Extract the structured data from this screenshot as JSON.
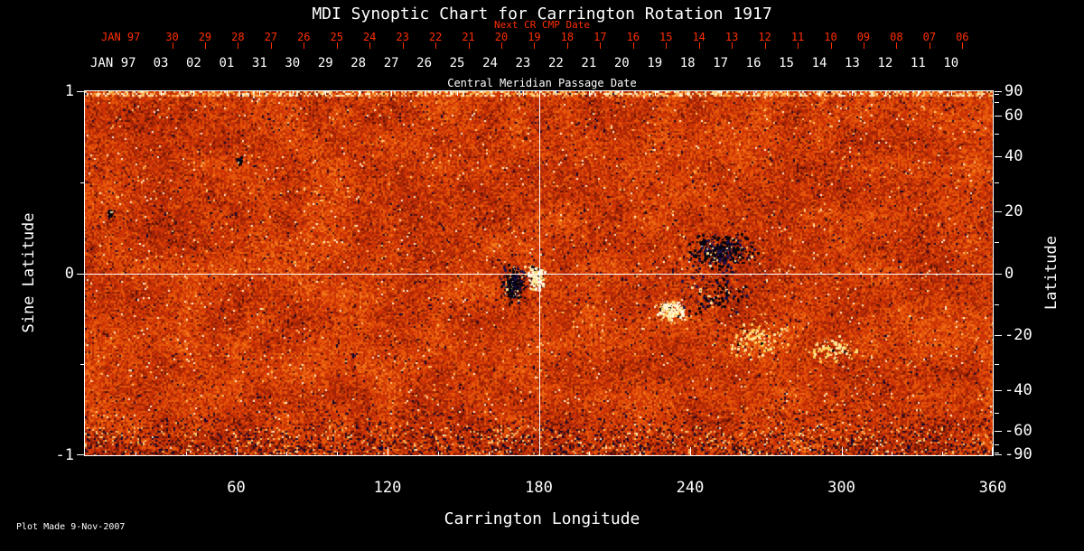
{
  "title": "MDI Synoptic Chart for Carrington Rotation 1917",
  "footer": "Plot Made  9-Nov-2007",
  "colors": {
    "background": "#000000",
    "foreground": "#ffffff",
    "next_cr_axis": "#ff2e00"
  },
  "top_axis_red": {
    "label": "Next CR CMP Date",
    "lead_label": "JAN 97",
    "ticks": [
      "30",
      "29",
      "28",
      "27",
      "26",
      "25",
      "24",
      "23",
      "22",
      "21",
      "20",
      "19",
      "18",
      "17",
      "16",
      "15",
      "14",
      "13",
      "12",
      "11",
      "10",
      "09",
      "08",
      "07",
      "06"
    ]
  },
  "top_axis_white": {
    "label": "Central Meridian Passage Date",
    "lead_label": "JAN 97",
    "ticks": [
      "03",
      "02",
      "01",
      "31",
      "30",
      "29",
      "28",
      "27",
      "26",
      "25",
      "24",
      "23",
      "22",
      "21",
      "20",
      "19",
      "18",
      "17",
      "16",
      "15",
      "14",
      "13",
      "12",
      "11",
      "10"
    ]
  },
  "chart_data": {
    "type": "heatmap",
    "title": "MDI Synoptic Chart for Carrington Rotation 1917",
    "xlabel": "Carrington Longitude",
    "ylabel_left": "Sine Latitude",
    "ylabel_right": "Latitude",
    "x_range": [
      0,
      360
    ],
    "sine_latitude_range": [
      -1,
      1
    ],
    "x_ticks": [
      60,
      120,
      180,
      240,
      300,
      360
    ],
    "x_minor_step": 20,
    "sine_latitude_ticks": [
      1,
      0,
      -1
    ],
    "sine_latitude_minor_ticks": [
      0.5,
      -0.5
    ],
    "latitude_ticks": [
      90,
      60,
      40,
      20,
      0,
      -20,
      -40,
      -60,
      -90
    ],
    "latitude_minor_ticks": [
      80,
      70,
      50,
      30,
      10,
      -10,
      -30,
      -50,
      -70,
      -80
    ],
    "reference_lines": {
      "longitude": 180,
      "sine_latitude": 0
    },
    "field_palette": [
      "#0c0630",
      "#5a1206",
      "#a02305",
      "#cc3305",
      "#e65509",
      "#f2751a",
      "#fa9a33",
      "#ffc970",
      "#fff3d2"
    ],
    "polarity_colors": {
      "negative": [
        "#05030c",
        "#1c1048"
      ],
      "positive": [
        "#fffbe6",
        "#ffe8a0",
        "#ffd25c"
      ]
    },
    "active_regions": [
      {
        "longitude": 170,
        "sine_latitude": -0.06,
        "polarity": "negative",
        "spread_lon": 5,
        "spread_sin": 0.1,
        "dots": 300
      },
      {
        "longitude": 178.5,
        "sine_latitude": -0.02,
        "polarity": "positive",
        "spread_lon": 3.5,
        "spread_sin": 0.07,
        "dots": 220
      },
      {
        "longitude": 252,
        "sine_latitude": 0.12,
        "polarity": "negative",
        "spread_lon": 13,
        "spread_sin": 0.1,
        "dots": 500
      },
      {
        "longitude": 232,
        "sine_latitude": -0.2,
        "polarity": "positive",
        "spread_lon": 5.5,
        "spread_sin": 0.06,
        "dots": 260
      },
      {
        "longitude": 250,
        "sine_latitude": -0.1,
        "polarity": "negative",
        "spread_lon": 15,
        "spread_sin": 0.15,
        "dots": 180
      },
      {
        "longitude": 265,
        "sine_latitude": -0.36,
        "polarity": "positive",
        "spread_lon": 14,
        "spread_sin": 0.1,
        "dots": 160,
        "faint": true
      },
      {
        "longitude": 296,
        "sine_latitude": -0.42,
        "polarity": "positive",
        "spread_lon": 10,
        "spread_sin": 0.08,
        "dots": 110,
        "faint": true
      },
      {
        "longitude": 10,
        "sine_latitude": 0.33,
        "polarity": "negative",
        "spread_lon": 1.6,
        "spread_sin": 0.03,
        "dots": 40
      },
      {
        "longitude": 61,
        "sine_latitude": 0.62,
        "polarity": "negative",
        "spread_lon": 1.2,
        "spread_sin": 0.025,
        "dots": 25
      }
    ]
  }
}
